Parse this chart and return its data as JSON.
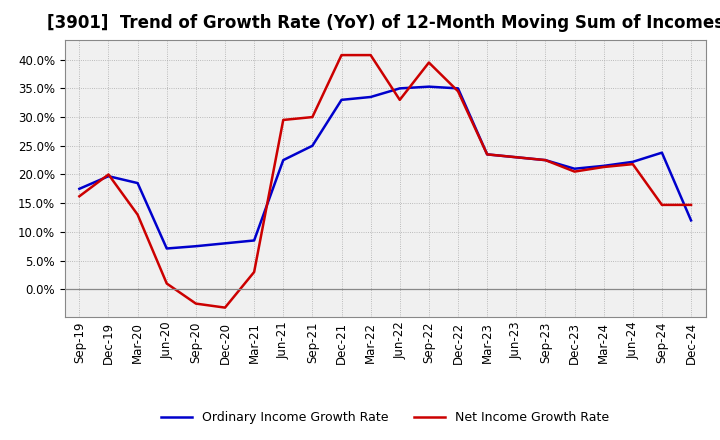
{
  "title": "[3901]  Trend of Growth Rate (YoY) of 12-Month Moving Sum of Incomes",
  "x_labels": [
    "Sep-19",
    "Dec-19",
    "Mar-20",
    "Jun-20",
    "Sep-20",
    "Dec-20",
    "Mar-21",
    "Jun-21",
    "Sep-21",
    "Dec-21",
    "Mar-22",
    "Jun-22",
    "Sep-22",
    "Dec-22",
    "Mar-23",
    "Jun-23",
    "Sep-23",
    "Dec-23",
    "Mar-24",
    "Jun-24",
    "Sep-24",
    "Dec-24"
  ],
  "ordinary_income": [
    0.175,
    0.197,
    0.185,
    0.071,
    0.075,
    0.08,
    0.085,
    0.225,
    0.25,
    0.33,
    0.335,
    0.35,
    0.353,
    0.35,
    0.235,
    0.23,
    0.225,
    0.21,
    0.215,
    0.222,
    0.238,
    0.12
  ],
  "net_income": [
    0.162,
    0.2,
    0.13,
    0.01,
    -0.025,
    -0.032,
    0.03,
    0.295,
    0.3,
    0.408,
    0.408,
    0.33,
    0.395,
    0.345,
    0.235,
    0.23,
    0.225,
    0.205,
    0.213,
    0.218,
    0.147,
    0.147
  ],
  "ordinary_color": "#0000cc",
  "net_color": "#cc0000",
  "ylim_min": -0.048,
  "ylim_max": 0.435,
  "yticks": [
    0.0,
    0.05,
    0.1,
    0.15,
    0.2,
    0.25,
    0.3,
    0.35,
    0.4
  ],
  "legend_ordinary": "Ordinary Income Growth Rate",
  "legend_net": "Net Income Growth Rate",
  "plot_bg_color": "#f0f0f0",
  "fig_bg_color": "#ffffff",
  "grid_color": "#aaaaaa",
  "line_width": 1.8,
  "title_fontsize": 12,
  "tick_fontsize": 8.5,
  "legend_fontsize": 9
}
